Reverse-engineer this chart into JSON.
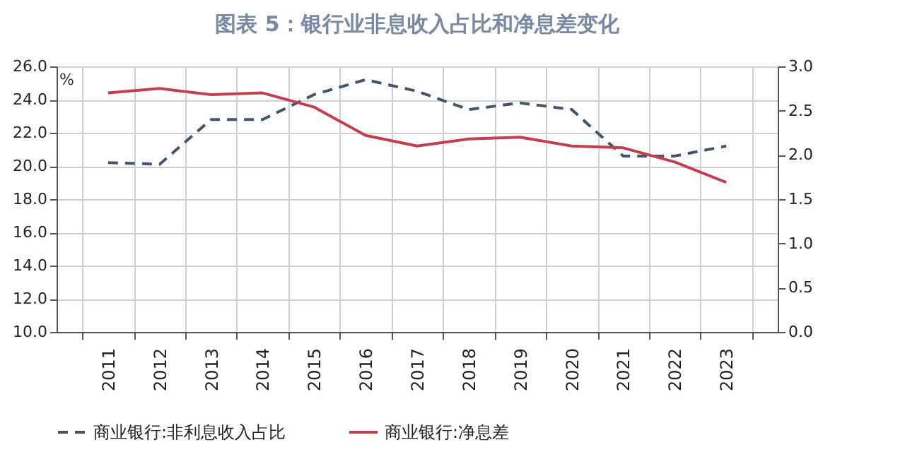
{
  "chart_data": {
    "type": "line",
    "title": "图表 5：银行业非息收入占比和净息差变化",
    "ylabel": "%",
    "categories": [
      "2011",
      "2012",
      "2013",
      "2014",
      "2015",
      "2016",
      "2017",
      "2018",
      "2019",
      "2020",
      "2021",
      "2022",
      "2023"
    ],
    "series": [
      {
        "name": "商业银行:非利息收入占比",
        "color": "#44546a",
        "line_style": "dashed",
        "values": [
          20.2,
          20.1,
          22.8,
          22.8,
          24.3,
          25.2,
          24.5,
          23.4,
          23.8,
          23.4,
          20.6,
          20.6,
          21.2
        ]
      },
      {
        "name": "商业银行:净息差",
        "color": "#c0404f",
        "line_style": "solid",
        "axis": "y2",
        "values": [
          2.7,
          2.75,
          2.68,
          2.7,
          2.54,
          2.22,
          2.1,
          2.18,
          2.2,
          2.1,
          2.08,
          1.92,
          1.69
        ]
      }
    ],
    "ylim": [
      10,
      26
    ],
    "yticks": [
      {
        "value": 10,
        "label": "10.0"
      },
      {
        "value": 12,
        "label": "12.0"
      },
      {
        "value": 14,
        "label": "14.0"
      },
      {
        "value": 16,
        "label": "16.0"
      },
      {
        "value": 18,
        "label": "18.0"
      },
      {
        "value": 20,
        "label": "20.0"
      },
      {
        "value": 22,
        "label": "22.0"
      },
      {
        "value": 24,
        "label": "24.0"
      },
      {
        "value": 26,
        "label": "26.0"
      }
    ],
    "y2lim": [
      0,
      3
    ],
    "y2ticks": [
      {
        "value": 0,
        "label": "0.0"
      },
      {
        "value": 0.5,
        "label": "0.5"
      },
      {
        "value": 1,
        "label": "1.0"
      },
      {
        "value": 1.5,
        "label": "1.5"
      },
      {
        "value": 2,
        "label": "2.0"
      },
      {
        "value": 2.5,
        "label": "2.5"
      },
      {
        "value": 3,
        "label": "3.0"
      }
    ],
    "grid": true,
    "legend": "bottom"
  }
}
